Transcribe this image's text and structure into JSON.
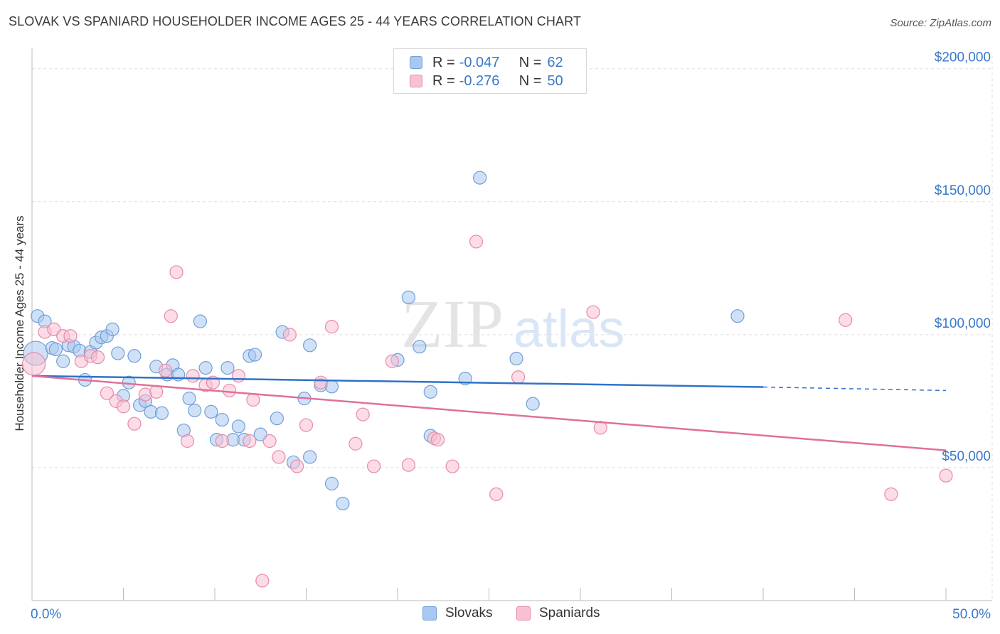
{
  "title": "SLOVAK VS SPANIARD HOUSEHOLDER INCOME AGES 25 - 44 YEARS CORRELATION CHART",
  "source": "Source: ZipAtlas.com",
  "watermark": {
    "zip": "ZIP",
    "atlas": "atlas"
  },
  "legend": {
    "rows": [
      {
        "label": "R =",
        "r": "-0.047",
        "n_label": "N =",
        "n": "62",
        "color": "#a9c8f0",
        "stroke": "#6f9fd8"
      },
      {
        "label": "R =",
        "r": "-0.276",
        "n_label": "N =",
        "n": "50",
        "color": "#f9c0d2",
        "stroke": "#e88aa8"
      }
    ]
  },
  "bottom_legend": [
    {
      "label": "Slovaks",
      "color": "#a9c8f0",
      "stroke": "#6f9fd8"
    },
    {
      "label": "Spaniards",
      "color": "#f9c0d2",
      "stroke": "#e88aa8"
    }
  ],
  "chart_data": {
    "type": "scatter",
    "title": "SLOVAK VS SPANIARD HOUSEHOLDER INCOME AGES 25 - 44 YEARS CORRELATION CHART",
    "xlabel": "",
    "ylabel": "Householder Income Ages 25 - 44 years",
    "xlim": [
      0,
      50
    ],
    "ylim": [
      0,
      205000
    ],
    "x_tick_labels": [
      "0.0%",
      "50.0%"
    ],
    "y_ticks": [
      50000,
      100000,
      150000,
      200000
    ],
    "y_tick_labels": [
      "$50,000",
      "$100,000",
      "$150,000",
      "$200,000"
    ],
    "grid": true,
    "legend_position": "top-center",
    "series": [
      {
        "name": "Slovaks",
        "color": "#a9c8f0",
        "stroke": "#6f9fd8",
        "line_color": "#2f72c9",
        "trend": {
          "x": [
            0,
            40,
            50
          ],
          "y": [
            84500,
            80300,
            79000
          ],
          "solid_until": 40
        },
        "points": [
          [
            0.2,
            93000
          ],
          [
            0.3,
            107000
          ],
          [
            0.7,
            105000
          ],
          [
            1.1,
            95000
          ],
          [
            1.3,
            94500
          ],
          [
            1.7,
            90000
          ],
          [
            2.0,
            96000
          ],
          [
            2.3,
            95500
          ],
          [
            2.6,
            94000
          ],
          [
            2.9,
            83000
          ],
          [
            3.2,
            93500
          ],
          [
            3.5,
            97000
          ],
          [
            3.8,
            99000
          ],
          [
            4.1,
            99500
          ],
          [
            4.4,
            102000
          ],
          [
            4.7,
            93000
          ],
          [
            5.0,
            77000
          ],
          [
            5.3,
            82000
          ],
          [
            5.6,
            92000
          ],
          [
            5.9,
            73500
          ],
          [
            6.2,
            75000
          ],
          [
            6.5,
            71000
          ],
          [
            6.8,
            88000
          ],
          [
            7.1,
            70500
          ],
          [
            7.4,
            85000
          ],
          [
            7.7,
            88500
          ],
          [
            8.0,
            85000
          ],
          [
            8.3,
            64000
          ],
          [
            8.6,
            76000
          ],
          [
            8.9,
            71500
          ],
          [
            9.2,
            105000
          ],
          [
            9.5,
            87500
          ],
          [
            9.8,
            71000
          ],
          [
            10.1,
            60500
          ],
          [
            10.4,
            68000
          ],
          [
            10.7,
            87500
          ],
          [
            11.0,
            60500
          ],
          [
            11.3,
            65500
          ],
          [
            11.6,
            60500
          ],
          [
            11.9,
            92000
          ],
          [
            12.2,
            92500
          ],
          [
            12.5,
            62500
          ],
          [
            13.4,
            68500
          ],
          [
            13.7,
            101000
          ],
          [
            14.3,
            52000
          ],
          [
            14.9,
            76000
          ],
          [
            15.2,
            54000
          ],
          [
            15.2,
            96000
          ],
          [
            15.8,
            81000
          ],
          [
            16.4,
            44000
          ],
          [
            16.4,
            80500
          ],
          [
            17.0,
            36500
          ],
          [
            20.0,
            90500
          ],
          [
            20.6,
            114000
          ],
          [
            21.2,
            95500
          ],
          [
            21.8,
            78500
          ],
          [
            21.8,
            62000
          ],
          [
            23.7,
            83500
          ],
          [
            24.5,
            159000
          ],
          [
            26.5,
            91000
          ],
          [
            27.4,
            74000
          ],
          [
            38.6,
            107000
          ]
        ]
      },
      {
        "name": "Spaniards",
        "color": "#f9c0d2",
        "stroke": "#e88aa8",
        "line_color": "#e0709a",
        "trend": {
          "x": [
            0,
            50
          ],
          "y": [
            84500,
            56500
          ],
          "solid_until": 50
        },
        "points": [
          [
            0.1,
            89000
          ],
          [
            0.7,
            101000
          ],
          [
            1.2,
            102000
          ],
          [
            1.7,
            99500
          ],
          [
            2.1,
            99500
          ],
          [
            2.7,
            90000
          ],
          [
            3.2,
            92000
          ],
          [
            3.6,
            91500
          ],
          [
            4.1,
            78000
          ],
          [
            4.6,
            75000
          ],
          [
            5.0,
            73000
          ],
          [
            5.6,
            66500
          ],
          [
            6.2,
            77500
          ],
          [
            6.8,
            78500
          ],
          [
            7.3,
            86500
          ],
          [
            7.6,
            107000
          ],
          [
            7.9,
            123500
          ],
          [
            8.5,
            60000
          ],
          [
            8.8,
            84500
          ],
          [
            9.5,
            81000
          ],
          [
            9.9,
            82000
          ],
          [
            10.4,
            60000
          ],
          [
            10.8,
            79000
          ],
          [
            11.3,
            84500
          ],
          [
            11.9,
            60000
          ],
          [
            12.1,
            75500
          ],
          [
            12.6,
            7500
          ],
          [
            13.0,
            60000
          ],
          [
            13.5,
            54000
          ],
          [
            14.1,
            100000
          ],
          [
            14.5,
            50500
          ],
          [
            15.0,
            66000
          ],
          [
            15.8,
            82000
          ],
          [
            16.4,
            103000
          ],
          [
            17.7,
            59000
          ],
          [
            18.1,
            70000
          ],
          [
            18.7,
            50500
          ],
          [
            19.7,
            90000
          ],
          [
            20.6,
            51000
          ],
          [
            22.0,
            61000
          ],
          [
            22.2,
            60500
          ],
          [
            23.0,
            50500
          ],
          [
            24.3,
            135000
          ],
          [
            25.4,
            40000
          ],
          [
            26.6,
            84000
          ],
          [
            30.7,
            108500
          ],
          [
            31.1,
            65000
          ],
          [
            44.5,
            105500
          ],
          [
            47.0,
            40000
          ],
          [
            50.0,
            47000
          ]
        ]
      }
    ]
  }
}
